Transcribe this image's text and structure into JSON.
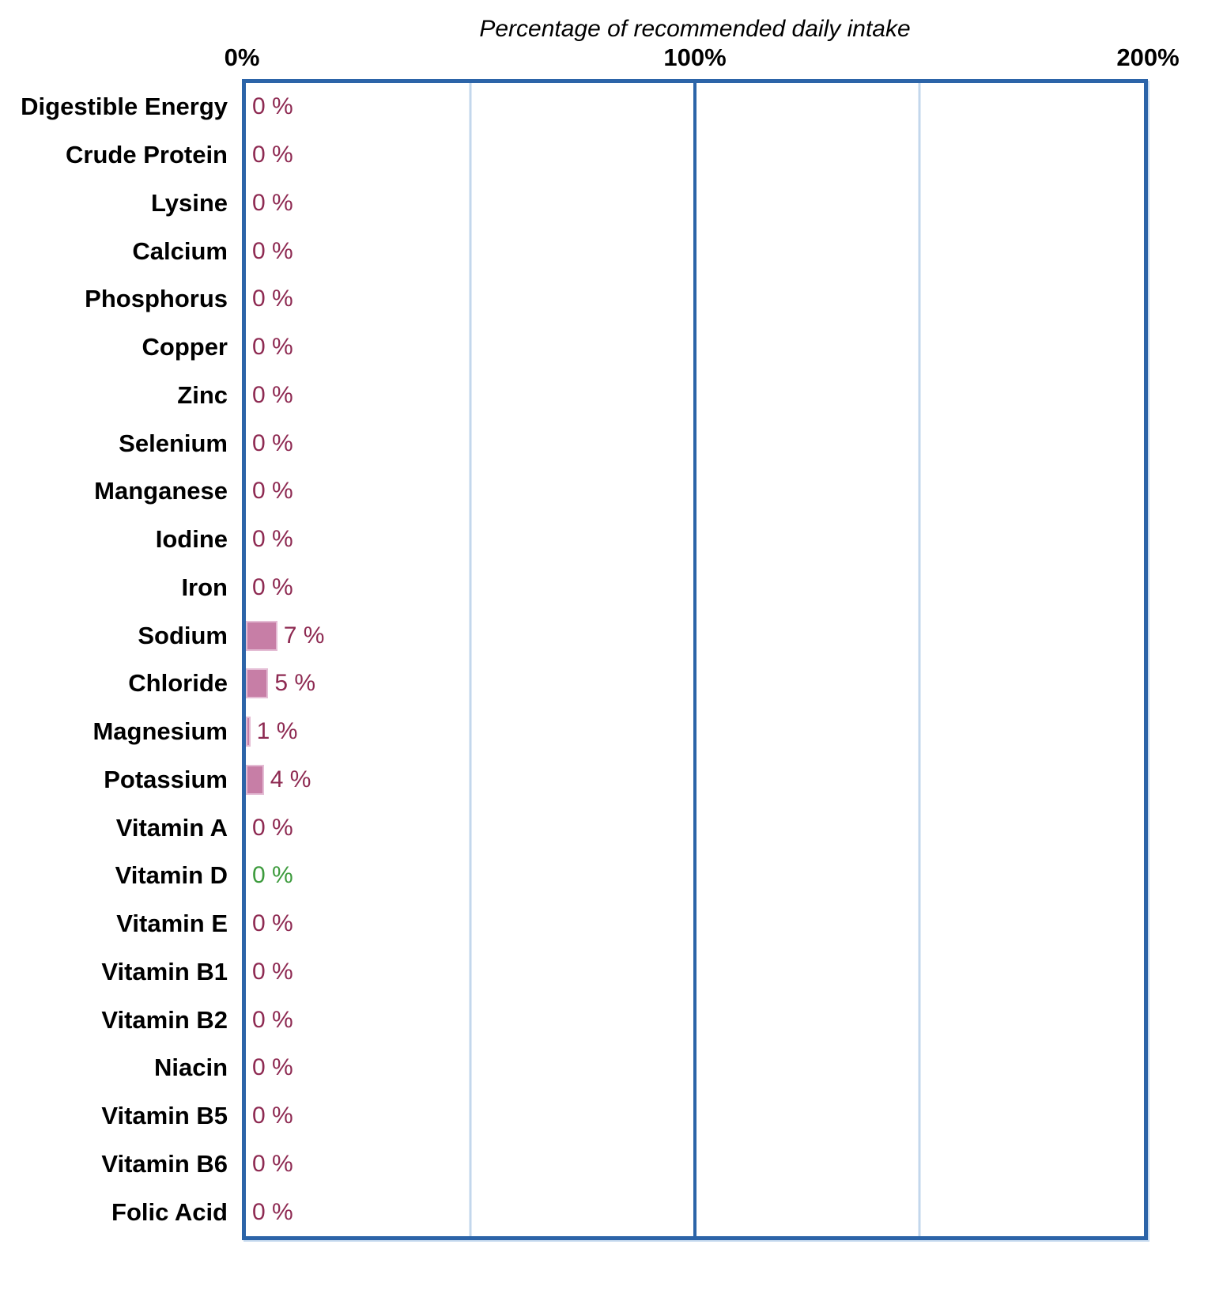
{
  "colors": {
    "frame_blue": "#2c64a8",
    "grid_light": "#c3d7ec",
    "bar_fill": "#c77ea6",
    "bar_edge": "#e4bcd4",
    "value_maroon": "#8e2a52",
    "value_green": "#3d9b3d",
    "label_black": "#000000"
  },
  "chart_data": {
    "type": "bar",
    "orientation": "horizontal",
    "title": "Percentage of recommended daily intake",
    "xlabel": "Percentage of recommended daily intake",
    "ylabel": "",
    "xlim": [
      0,
      200
    ],
    "x_ticks": [
      {
        "label": "0%",
        "value": 0
      },
      {
        "label": "100%",
        "value": 100
      },
      {
        "label": "200%",
        "value": 200
      }
    ],
    "gridlines": {
      "minor": [
        50,
        150
      ],
      "major": [
        100
      ]
    },
    "legend_position": "none",
    "categories": [
      "Digestible Energy",
      "Crude Protein",
      "Lysine",
      "Calcium",
      "Phosphorus",
      "Copper",
      "Zinc",
      "Selenium",
      "Manganese",
      "Iodine",
      "Iron",
      "Sodium",
      "Chloride",
      "Magnesium",
      "Potassium",
      "Vitamin A",
      "Vitamin D",
      "Vitamin E",
      "Vitamin B1",
      "Vitamin B2",
      "Niacin",
      "Vitamin B5",
      "Vitamin B6",
      "Folic Acid"
    ],
    "values": [
      0,
      0,
      0,
      0,
      0,
      0,
      0,
      0,
      0,
      0,
      0,
      7,
      5,
      1,
      4,
      0,
      0,
      0,
      0,
      0,
      0,
      0,
      0,
      0
    ],
    "value_labels": [
      "0 %",
      "0 %",
      "0 %",
      "0 %",
      "0 %",
      "0 %",
      "0 %",
      "0 %",
      "0 %",
      "0 %",
      "0 %",
      "7 %",
      "5 %",
      "1 %",
      "4 %",
      "0 %",
      "0 %",
      "0 %",
      "0 %",
      "0 %",
      "0 %",
      "0 %",
      "0 %",
      "0 %"
    ],
    "value_colors": [
      "maroon",
      "maroon",
      "maroon",
      "maroon",
      "maroon",
      "maroon",
      "maroon",
      "maroon",
      "maroon",
      "maroon",
      "maroon",
      "maroon",
      "maroon",
      "maroon",
      "maroon",
      "maroon",
      "green",
      "maroon",
      "maroon",
      "maroon",
      "maroon",
      "maroon",
      "maroon",
      "maroon"
    ]
  }
}
